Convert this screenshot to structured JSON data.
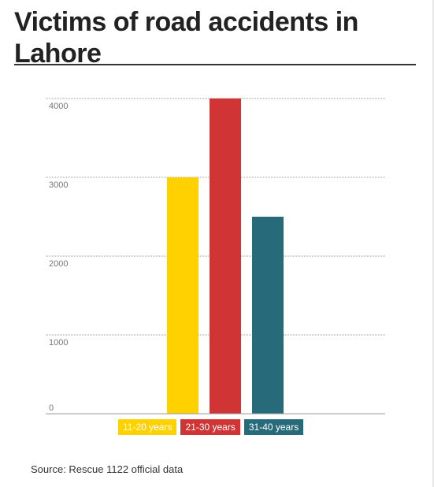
{
  "title": "Victims of road accidents in Lahore",
  "source": "Source: Rescue 1122 official data",
  "colors": {
    "yellow": "#ffd100",
    "red": "#d13434",
    "teal": "#276b7a",
    "grid": "#9a9a9a",
    "axis": "#999999",
    "tick_text": "#777777"
  },
  "chart_data": {
    "type": "bar",
    "title": "Victims of road accidents in Lahore",
    "xlabel": "",
    "ylabel": "",
    "ylim": [
      0,
      4000
    ],
    "yticks": [
      0,
      1000,
      2000,
      3000,
      4000
    ],
    "grid": true,
    "legend_placement": "bottom",
    "categories": [
      "11-20 years",
      "21-30 years",
      "31-40 years"
    ],
    "values": [
      3000,
      4000,
      2500
    ],
    "bar_colors": [
      "#ffd100",
      "#d13434",
      "#276b7a"
    ]
  }
}
